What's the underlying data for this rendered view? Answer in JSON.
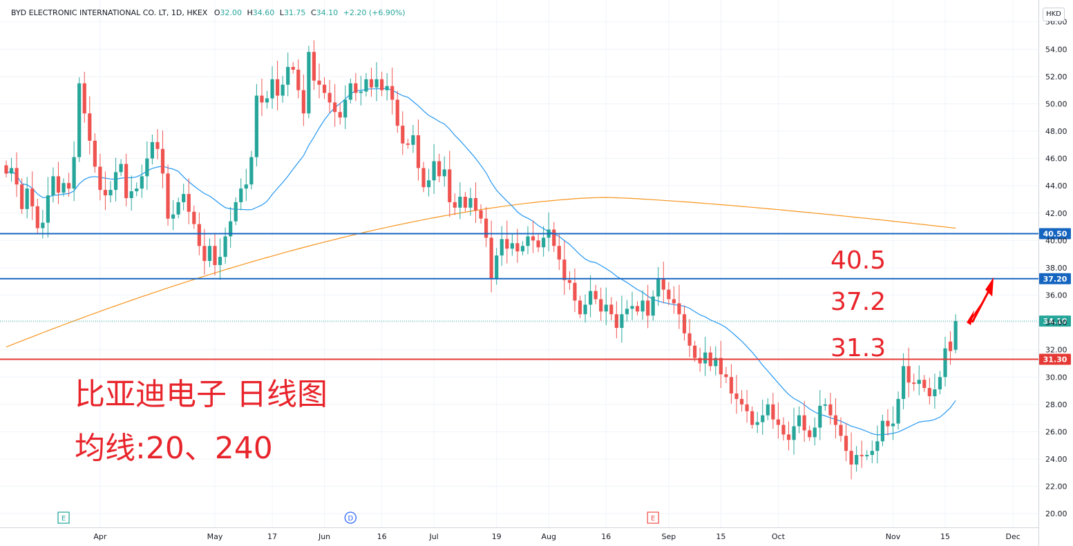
{
  "legend": {
    "symbol": "BYD ELECTRONIC INTERNATIONAL CO. LT, 1D, HKEX",
    "o_label": "O",
    "o_val": "32.00",
    "h_label": "H",
    "h_val": "34.60",
    "l_label": "L",
    "l_val": "31.75",
    "c_label": "C",
    "c_val": "34.10",
    "change": "+2.20 (+6.90%)"
  },
  "currency": "HKD",
  "annotations": {
    "title_cn": "比亚迪电子 日线图",
    "ma_cn": "均线:20、240",
    "level_a": "40.5",
    "level_b": "37.2",
    "level_c": "31.3"
  },
  "colors": {
    "up": "#26a69a",
    "down": "#ef5350",
    "ma20": "#2196f3",
    "ma240": "#f7931a",
    "hline_blue": "#1565c0",
    "hline_red": "#e53935",
    "text_red": "#e8242b"
  },
  "chart_data": {
    "type": "candlestick",
    "ylim": [
      19,
      57.6
    ],
    "y_ticks": [
      "20.00",
      "22.00",
      "24.00",
      "26.00",
      "28.00",
      "30.00",
      "32.00",
      "34.00",
      "36.00",
      "38.00",
      "40.00",
      "42.00",
      "44.00",
      "46.00",
      "48.00",
      "50.00",
      "52.00",
      "54.00",
      "56.00"
    ],
    "x_ticks": [
      {
        "label": "Apr",
        "bar": 18
      },
      {
        "label": "May",
        "bar": 40
      },
      {
        "label": "17",
        "bar": 51
      },
      {
        "label": "Jun",
        "bar": 61
      },
      {
        "label": "16",
        "bar": 72
      },
      {
        "label": "Jul",
        "bar": 82
      },
      {
        "label": "19",
        "bar": 94
      },
      {
        "label": "Aug",
        "bar": 104
      },
      {
        "label": "16",
        "bar": 115
      },
      {
        "label": "Sep",
        "bar": 127
      },
      {
        "label": "15",
        "bar": 137
      },
      {
        "label": "Oct",
        "bar": 148
      },
      {
        "label": "Nov",
        "bar": 170
      },
      {
        "label": "15",
        "bar": 180
      },
      {
        "label": "Dec",
        "bar": 193
      }
    ],
    "markers": [
      {
        "label": "E",
        "bar": 11,
        "color": "#26a69a"
      },
      {
        "label": "D",
        "bar": 66,
        "color": "#2962ff"
      },
      {
        "label": "E",
        "bar": 124,
        "color": "#ef5350"
      }
    ],
    "horizontal_lines": [
      {
        "value": 40.5,
        "label": "40.50",
        "color": "#1565c0"
      },
      {
        "value": 37.2,
        "label": "37.20",
        "color": "#1565c0"
      },
      {
        "value": 31.3,
        "label": "31.30",
        "color": "#e53935"
      },
      {
        "value": 34.1,
        "label": "34.10",
        "color": "#26a69a",
        "dotted": true
      }
    ],
    "closes": [
      44.9,
      45.3,
      44.1,
      42.3,
      43.8,
      42.5,
      40.9,
      41.3,
      43.3,
      44.7,
      43.5,
      44.2,
      43.8,
      46.1,
      51.5,
      49.3,
      47.3,
      45.4,
      43.7,
      43.3,
      43.7,
      45.0,
      45.6,
      43.1,
      43.6,
      43.8,
      44.7,
      46.0,
      47.2,
      46.7,
      44.9,
      41.6,
      41.9,
      42.8,
      43.4,
      42.1,
      41.2,
      39.6,
      38.5,
      39.6,
      38.2,
      38.8,
      40.3,
      41.4,
      42.8,
      43.8,
      44.1,
      46.1,
      50.6,
      50.1,
      50.4,
      51.8,
      50.6,
      51.4,
      52.7,
      52.5,
      51.0,
      49.3,
      53.8,
      51.7,
      51.4,
      50.8,
      50.1,
      49.4,
      49.0,
      50.3,
      51.5,
      50.8,
      50.9,
      51.8,
      51.2,
      51.8,
      51.0,
      51.3,
      50.3,
      48.4,
      47.1,
      47.0,
      47.7,
      45.3,
      43.9,
      44.4,
      45.8,
      44.7,
      45.2,
      42.8,
      42.4,
      43.2,
      42.4,
      43.1,
      42.2,
      41.6,
      40.2,
      37.2,
      38.9,
      40.1,
      39.4,
      39.8,
      39.2,
      39.6,
      40.3,
      40.0,
      39.5,
      40.2,
      40.8,
      39.6,
      38.6,
      37.1,
      36.9,
      35.6,
      34.6,
      35.3,
      36.3,
      35.7,
      34.8,
      35.3,
      34.6,
      33.6,
      34.6,
      35.0,
      35.2,
      34.8,
      35.6,
      34.5,
      35.9,
      37.2,
      36.4,
      35.7,
      35.4,
      34.6,
      33.2,
      32.3,
      31.4,
      31.0,
      31.8,
      30.8,
      31.4,
      30.2,
      30.0,
      28.8,
      28.4,
      28.0,
      27.5,
      26.5,
      26.7,
      27.2,
      28.0,
      26.9,
      26.5,
      25.8,
      25.4,
      26.4,
      27.2,
      26.1,
      25.6,
      26.3,
      27.9,
      28.0,
      27.2,
      26.5,
      25.7,
      24.6,
      23.6,
      24.3,
      24.2,
      24.3,
      24.6,
      25.3,
      26.8,
      26.4,
      26.6,
      28.4,
      30.8,
      29.6,
      29.5,
      29.8,
      29.2,
      28.6,
      29.1,
      30.0,
      32.1,
      31.9,
      34.1
    ]
  }
}
